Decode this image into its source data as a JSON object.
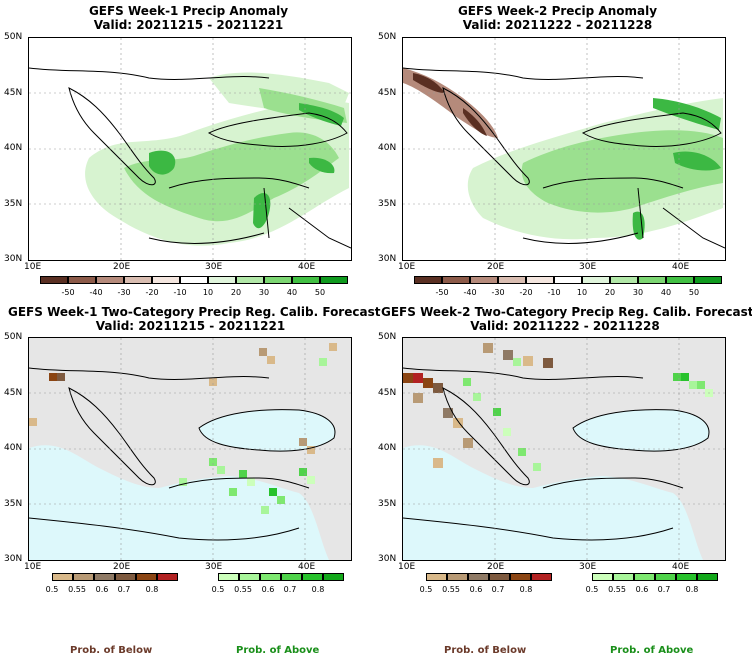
{
  "panels": [
    {
      "id": "tl",
      "title": "GEFS Week-1 Precip Anomaly",
      "valid": "Valid: 20211215 - 20211221",
      "lat_labels": [
        "50N",
        "45N",
        "40N",
        "35N",
        "30N"
      ],
      "lon_labels": [
        "10E",
        "20E",
        "30E",
        "40E"
      ]
    },
    {
      "id": "tr",
      "title": "GEFS Week-2 Precip Anomaly",
      "valid": "Valid: 20211222 - 20211228",
      "lat_labels": [
        "50N",
        "45N",
        "40N",
        "35N",
        "30N"
      ],
      "lon_labels": [
        "10E",
        "20E",
        "30E",
        "40E"
      ]
    },
    {
      "id": "bl",
      "title": "GEFS Week-1 Two-Category Precip Reg. Calib. Forecast",
      "valid": "Valid: 20211215 - 20211221",
      "lat_labels": [
        "50N",
        "45N",
        "40N",
        "35N",
        "30N"
      ],
      "lon_labels": [
        "10E",
        "20E",
        "30E",
        "40E"
      ]
    },
    {
      "id": "br",
      "title": "GEFS Week-2 Two-Category Precip Reg. Calib. Forecast",
      "valid": "Valid: 20211222 - 20211228",
      "lat_labels": [
        "50N",
        "45N",
        "40N",
        "35N",
        "30N"
      ],
      "lon_labels": [
        "10E",
        "20E",
        "30E",
        "40E"
      ]
    }
  ],
  "anomaly_colorbar": {
    "labels": [
      "-50",
      "-40",
      "-30",
      "-20",
      "-10",
      "10",
      "20",
      "30",
      "40",
      "50"
    ],
    "colors": [
      "#5a2f22",
      "#8c5a49",
      "#b58a7b",
      "#d9bdb1",
      "#f4e6df",
      "#ffffff",
      "#e0f5dc",
      "#b2e8a8",
      "#7cd672",
      "#42c043",
      "#0f9a1e"
    ]
  },
  "prob_below_colorbar": {
    "labels": [
      "0.5",
      "0.55",
      "0.6",
      "0.7",
      "0.8"
    ],
    "colors": [
      "#d9b98a",
      "#b89a75",
      "#8f7a65",
      "#7e5a3f",
      "#8b4513",
      "#b22222"
    ]
  },
  "prob_above_colorbar": {
    "labels": [
      "0.5",
      "0.55",
      "0.6",
      "0.7",
      "0.8"
    ],
    "colors": [
      "#ccffbb",
      "#a8f59a",
      "#7ee870",
      "#4fd34a",
      "#28c22c",
      "#12a81a"
    ]
  },
  "footer": {
    "below_label": "Prob. of Below",
    "above_label": "Prob. of Above",
    "below_color": "#6b3a2a",
    "above_color": "#1a8f1a"
  },
  "colors": {
    "sea_blue": "#ddf8fb",
    "land_gray": "#e6e6e6",
    "grid": "#999999"
  }
}
